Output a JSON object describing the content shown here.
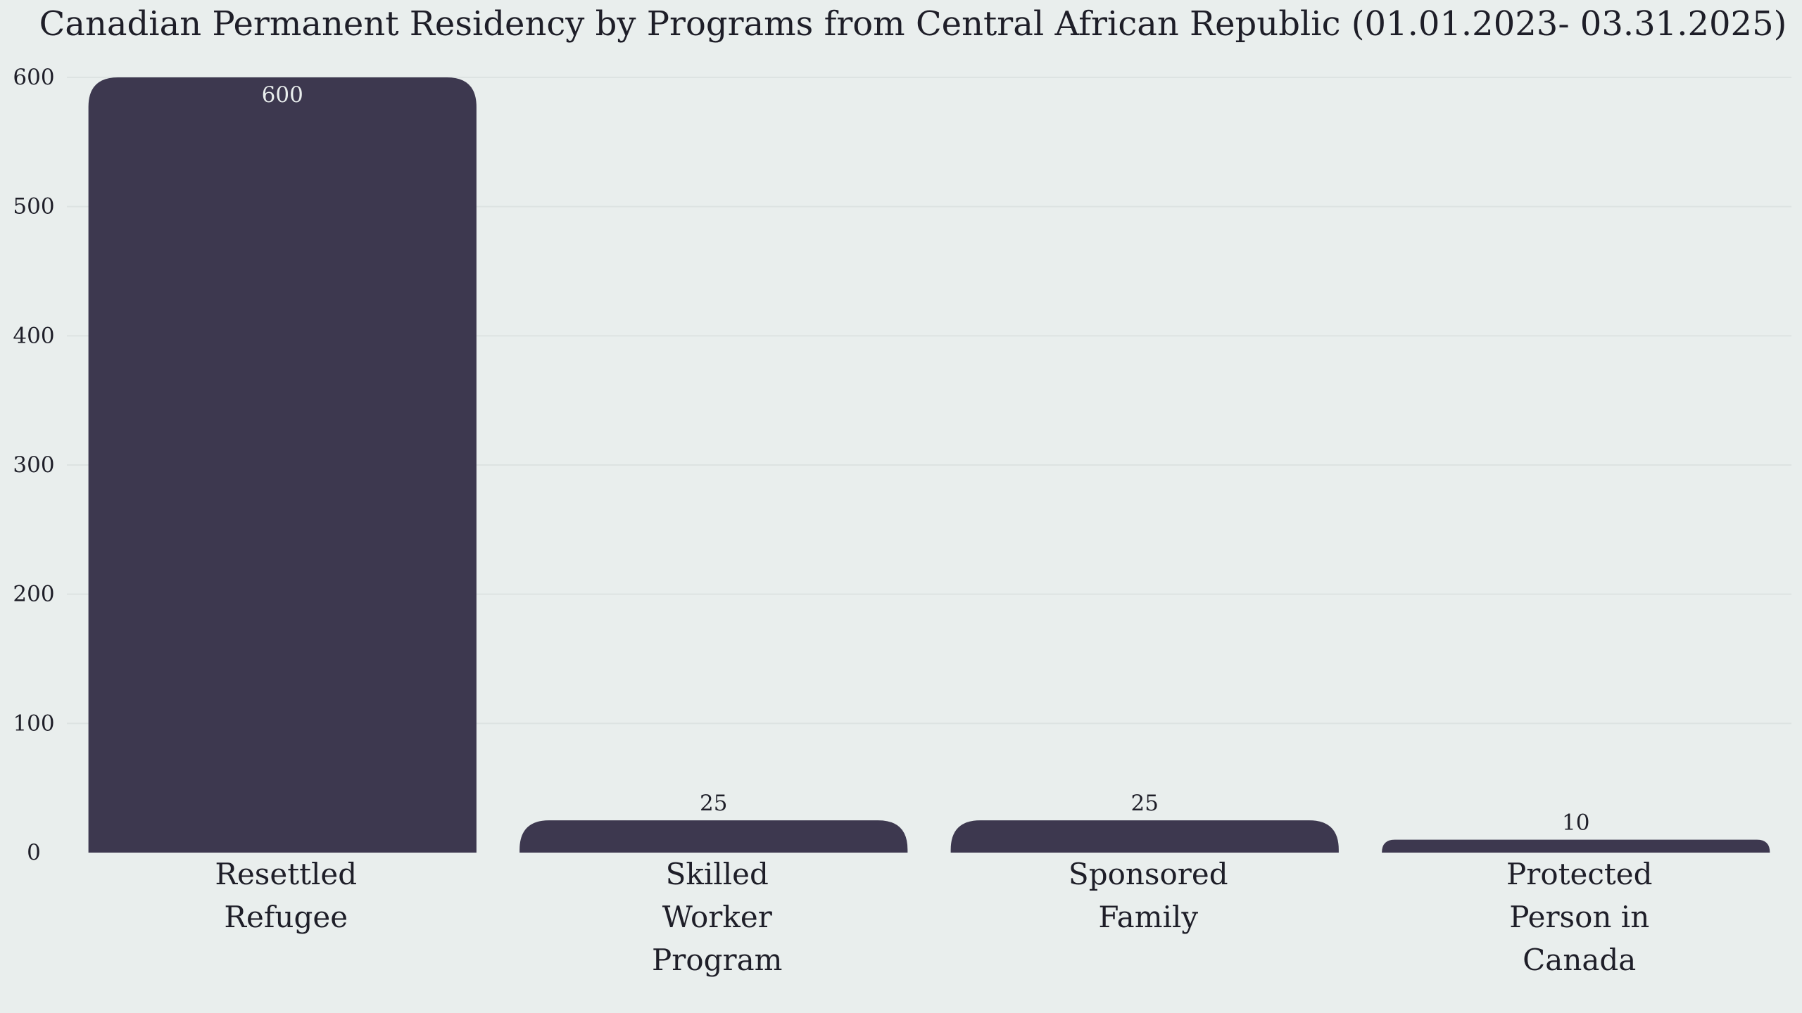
{
  "chart_data": {
    "type": "bar",
    "title": "Canadian Permanent Residency by Programs from Central African Republic (01.01.2023- 03.31.2025)",
    "categories": [
      "Resettled Refugee",
      "Skilled Worker Program",
      "Sponsored Family",
      "Protected Person in Canada"
    ],
    "values": [
      600,
      25,
      25,
      10
    ],
    "ylim": [
      0,
      600
    ],
    "yticks": [
      0,
      100,
      200,
      300,
      400,
      500,
      600
    ],
    "grid": true,
    "legend": "none",
    "colors": {
      "bar": "#3d384f",
      "background": "#e9eeed",
      "text": "#1e1e28",
      "label_inside": "#e9eeed"
    }
  }
}
